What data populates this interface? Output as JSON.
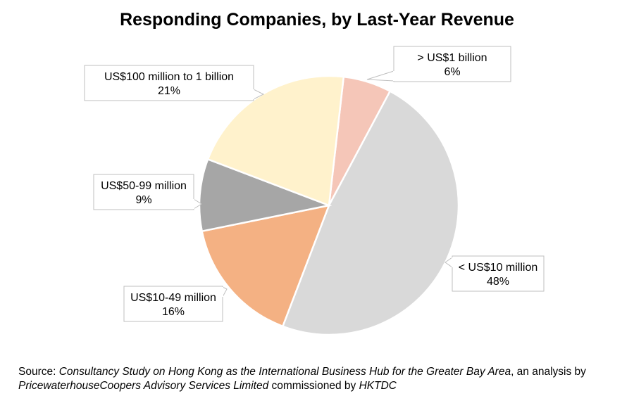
{
  "chart_data": {
    "type": "pie",
    "title": "Responding Companies, by Last-Year Revenue",
    "slices": [
      {
        "label": "> US$1 billion",
        "value": 6,
        "value_label": "6%",
        "color": "#F5C6B8"
      },
      {
        "label": "< US$10 million",
        "value": 48,
        "value_label": "48%",
        "color": "#D9D9D9"
      },
      {
        "label": "US$10-49 million",
        "value": 16,
        "value_label": "16%",
        "color": "#F4B183"
      },
      {
        "label": "US$50-99 million",
        "value": 9,
        "value_label": "9%",
        "color": "#A6A6A6"
      },
      {
        "label": "US$100 million to 1 billion",
        "value": 21,
        "value_label": "21%",
        "color": "#FFF2CC"
      }
    ]
  },
  "source": {
    "prefix": "Source: ",
    "study": "Consultancy Study on Hong Kong as the International Business Hub for the Greater Bay Area",
    "middle": ", an analysis by ",
    "firm": "PricewaterhouseCoopers Advisory Services Limited",
    "suffix": " commissioned by ",
    "org": "HKTDC"
  }
}
